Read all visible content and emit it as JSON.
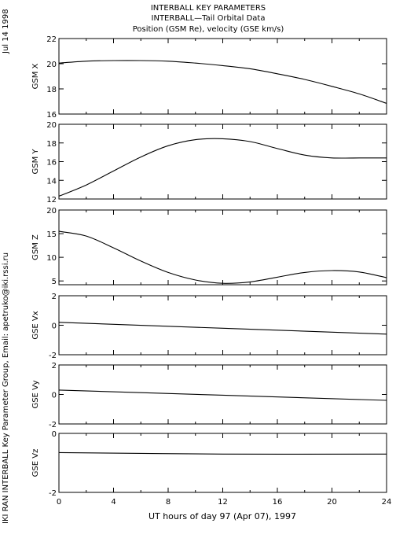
{
  "header": {
    "title_lines": [
      "INTERBALL KEY PARAMETERS",
      "INTERBALL—Tail Orbital Data",
      "Position (GSM Re), velocity (GSE km/s)"
    ],
    "date_stamp": "Jul 14 1998",
    "credit": "IKI RAN INTERBALL Key Parameter Group, Email: apetruko@iki.rssi.ru"
  },
  "chart_data": [
    {
      "type": "line",
      "ylabel": "GSM X",
      "ylim": [
        16,
        22
      ],
      "yticks": [
        16,
        18,
        20,
        22
      ],
      "xlim": [
        0,
        24
      ],
      "x": [
        0,
        2,
        4,
        6,
        8,
        10,
        12,
        14,
        16,
        18,
        20,
        22,
        24
      ],
      "y": [
        20.05,
        20.2,
        20.25,
        20.25,
        20.2,
        20.05,
        19.85,
        19.6,
        19.2,
        18.75,
        18.2,
        17.6,
        16.85
      ]
    },
    {
      "type": "line",
      "ylabel": "GSM Y",
      "ylim": [
        12,
        20
      ],
      "yticks": [
        12,
        14,
        16,
        18,
        20
      ],
      "xlim": [
        0,
        24
      ],
      "x": [
        0,
        2,
        4,
        6,
        8,
        10,
        12,
        14,
        16,
        18,
        20,
        22,
        24
      ],
      "y": [
        12.3,
        13.5,
        15.0,
        16.5,
        17.7,
        18.35,
        18.45,
        18.15,
        17.4,
        16.7,
        16.4,
        16.4,
        16.4
      ]
    },
    {
      "type": "line",
      "ylabel": "GSM Z",
      "ylim": [
        4.2,
        20
      ],
      "yticks": [
        5,
        10,
        15,
        20
      ],
      "xlim": [
        0,
        24
      ],
      "x": [
        0,
        2,
        4,
        6,
        8,
        10,
        12,
        14,
        16,
        18,
        20,
        22,
        24
      ],
      "y": [
        15.5,
        14.5,
        12.0,
        9.2,
        6.8,
        5.2,
        4.5,
        4.8,
        5.8,
        6.8,
        7.2,
        6.9,
        5.7
      ]
    },
    {
      "type": "line",
      "ylabel": "GSE Vx",
      "ylim": [
        -2,
        2
      ],
      "yticks": [
        -2,
        0,
        2
      ],
      "xlim": [
        0,
        24
      ],
      "x": [
        0,
        24
      ],
      "y": [
        0.2,
        -0.6
      ]
    },
    {
      "type": "line",
      "ylabel": "GSE Vy",
      "ylim": [
        -2,
        2
      ],
      "yticks": [
        -2,
        0,
        2
      ],
      "xlim": [
        0,
        24
      ],
      "x": [
        0,
        24
      ],
      "y": [
        0.3,
        -0.4
      ]
    },
    {
      "type": "line",
      "ylabel": "GSE Vz",
      "ylim": [
        -2,
        0
      ],
      "yticks": [
        -2,
        0
      ],
      "xlim": [
        0,
        24
      ],
      "x": [
        0,
        12,
        24
      ],
      "y": [
        -0.65,
        -0.7,
        -0.7
      ]
    }
  ],
  "x_axis": {
    "label": "UT hours of day  97 (Apr 07), 1997",
    "ticks": [
      0,
      4,
      8,
      12,
      16,
      20,
      24
    ]
  }
}
